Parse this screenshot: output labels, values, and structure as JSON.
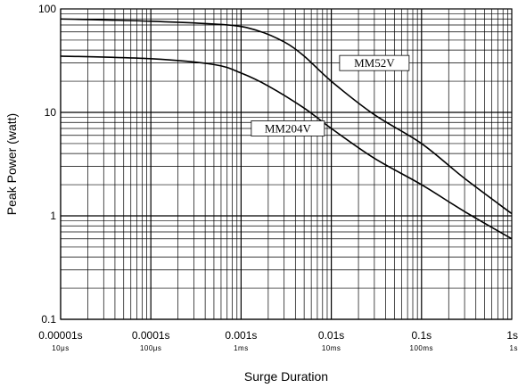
{
  "chart_data": {
    "type": "line",
    "title": "",
    "xlabel": "Surge Duration",
    "ylabel": "Peak Power (watt)",
    "x_scale": "log",
    "y_scale": "log",
    "xlim": [
      1e-05,
      1
    ],
    "ylim": [
      0.1,
      100
    ],
    "grid": true,
    "x_ticks": [
      {
        "value": 1e-05,
        "label": "0.00001s",
        "sublabel": "10μs"
      },
      {
        "value": 0.0001,
        "label": "0.0001s",
        "sublabel": "100μs"
      },
      {
        "value": 0.001,
        "label": "0.001s",
        "sublabel": "1ms"
      },
      {
        "value": 0.01,
        "label": "0.01s",
        "sublabel": "10ms"
      },
      {
        "value": 0.1,
        "label": "0.1s",
        "sublabel": "100ms"
      },
      {
        "value": 1,
        "label": "1s",
        "sublabel": "1s"
      }
    ],
    "y_ticks": [
      {
        "value": 100,
        "label": "100"
      },
      {
        "value": 10,
        "label": "10"
      },
      {
        "value": 1,
        "label": "1"
      },
      {
        "value": 0.1,
        "label": "0.1"
      }
    ],
    "series": [
      {
        "name": "MM52V",
        "x": [
          1e-05,
          0.0001,
          0.0007,
          0.0015,
          0.003,
          0.005,
          0.01,
          0.03,
          0.1,
          0.3,
          1
        ],
        "y": [
          80,
          76,
          70,
          62,
          48,
          35,
          20,
          9.5,
          5,
          2.3,
          1.05
        ]
      },
      {
        "name": "MM204V",
        "x": [
          1e-05,
          0.0001,
          0.0005,
          0.001,
          0.002,
          0.005,
          0.01,
          0.03,
          0.1,
          0.3,
          1
        ],
        "y": [
          35,
          33,
          29,
          24,
          18,
          11,
          7,
          3.6,
          2,
          1.1,
          0.6
        ]
      }
    ]
  }
}
